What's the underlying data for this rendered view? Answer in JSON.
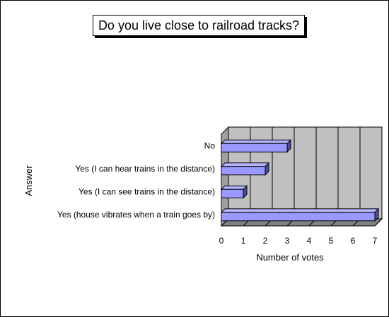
{
  "chart_data": {
    "type": "bar",
    "orientation": "horizontal",
    "title": "Do you live close to railroad tracks?",
    "xlabel": "Number of votes",
    "ylabel": "Answer",
    "categories": [
      "No",
      "Yes (I can hear trains in the distance)",
      "Yes (I can see trains in the distance)",
      "Yes (house vibrates when a train goes by)"
    ],
    "values": [
      3,
      2,
      1,
      7
    ],
    "xlim": [
      0,
      7
    ],
    "xticks": [
      0,
      1,
      2,
      3,
      4,
      5,
      6,
      7
    ],
    "grid": true,
    "style": "3d",
    "colors": {
      "bar_front": "#9999ff",
      "bar_top": "#b3b3ff",
      "bar_side": "#4d4d99",
      "plot_back": "#c0c0c0",
      "plot_floor": "#808080",
      "plot_side_wall": "#a0a0a0"
    }
  }
}
